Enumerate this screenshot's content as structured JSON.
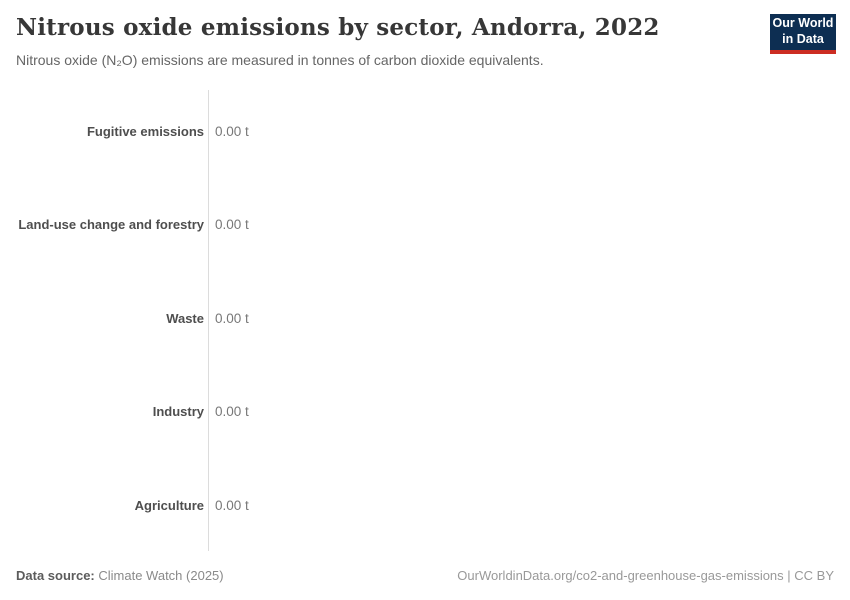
{
  "header": {
    "title": "Nitrous oxide emissions by sector, Andorra, 2022",
    "subtitle": "Nitrous oxide (N₂O) emissions are measured in tonnes of carbon dioxide equivalents."
  },
  "logo": {
    "line1": "Our World",
    "line2": "in Data",
    "bg_color": "#0d2e52",
    "accent_color": "#cc2d22"
  },
  "chart_data": {
    "type": "bar",
    "orientation": "horizontal",
    "title": "Nitrous oxide emissions by sector, Andorra, 2022",
    "categories": [
      "Fugitive emissions",
      "Land-use change and forestry",
      "Waste",
      "Industry",
      "Agriculture"
    ],
    "values": [
      0,
      0,
      0,
      0,
      0
    ],
    "value_labels": [
      "0.00 t",
      "0.00 t",
      "0.00 t",
      "0.00 t",
      "0.00 t"
    ],
    "unit": "tonnes of carbon dioxide equivalents",
    "xlim": [
      0,
      0
    ],
    "grid": false,
    "legend": false,
    "axis_line_color": "#dcdcdc"
  },
  "footer": {
    "datasource_label": "Data source:",
    "datasource_value": "Climate Watch (2025)",
    "credit": "OurWorldinData.org/co2-and-greenhouse-gas-emissions | CC BY"
  }
}
